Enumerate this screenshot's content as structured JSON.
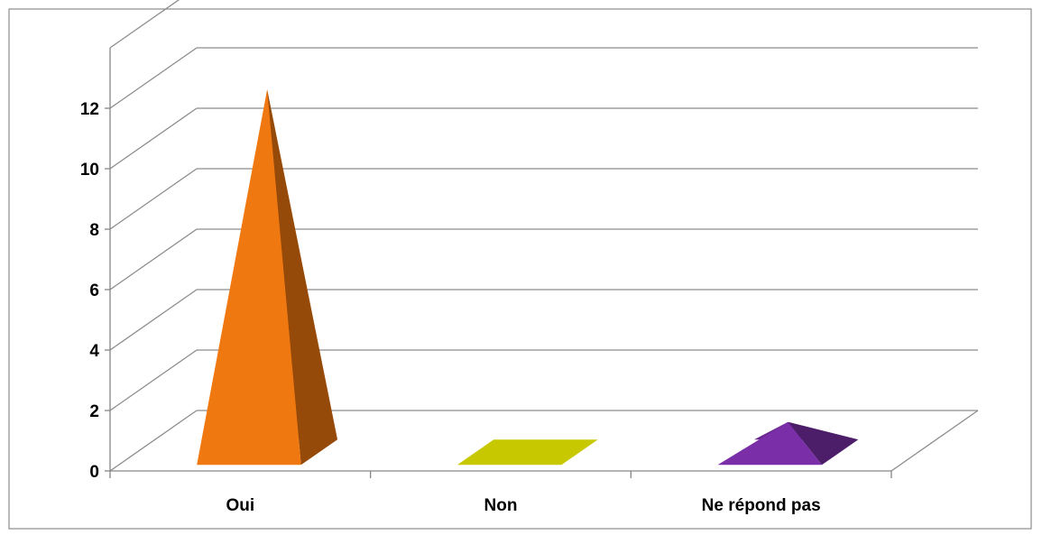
{
  "chart_data": {
    "type": "bar",
    "style": "3d-pyramid",
    "title": "",
    "xlabel": "",
    "ylabel": "",
    "categories": [
      "Oui",
      "Non",
      "Ne répond pas"
    ],
    "values": [
      12,
      0,
      1
    ],
    "colors": [
      "#F07810",
      "#C8C800",
      "#7A2FA8"
    ],
    "ylim": [
      0,
      12
    ],
    "yticks": [
      "0",
      "2",
      "4",
      "6",
      "8",
      "10",
      "12"
    ],
    "grid": true,
    "legend": "none"
  },
  "colors": {
    "axis": "#868686",
    "grid": "#8c8c8c",
    "border": "#8c8c8c",
    "background": "#ffffff"
  }
}
